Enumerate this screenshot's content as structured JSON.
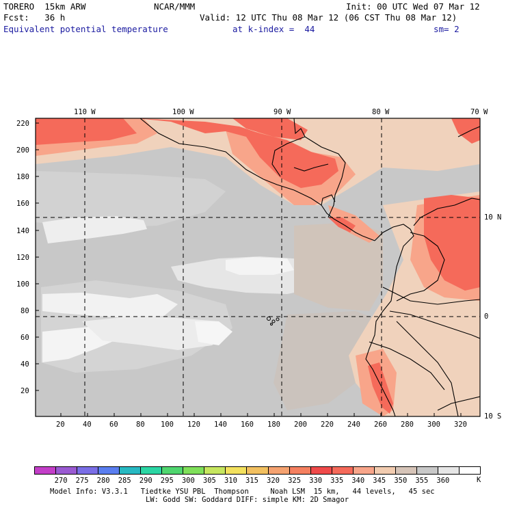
{
  "header": {
    "model": "TORERO  15km ARW",
    "org": "NCAR/MMM",
    "init": "Init: 00 UTC Wed 07 Mar 12",
    "fcst": "Fcst:   36 h",
    "valid": "Valid: 12 UTC Thu 08 Mar 12 (06 CST Thu 08 Mar 12)",
    "field": "Equivalent potential temperature",
    "level": "at k-index =  44",
    "smooth": "sm= 2"
  },
  "axes": {
    "top_lon_labels": [
      "110 W",
      "100 W",
      "90 W",
      "80 W",
      "70 W"
    ],
    "right_lat_labels": [
      "10 N",
      "0",
      "10 S"
    ],
    "y_ticks": [
      "220",
      "200",
      "180",
      "160",
      "140",
      "120",
      "100",
      "80",
      "60",
      "40",
      "20"
    ],
    "x_ticks": [
      "20",
      "40",
      "60",
      "80",
      "100",
      "120",
      "140",
      "160",
      "180",
      "200",
      "220",
      "240",
      "260",
      "280",
      "300",
      "320"
    ]
  },
  "colorbar": {
    "labels": [
      "270",
      "275",
      "280",
      "285",
      "290",
      "295",
      "300",
      "305",
      "310",
      "315",
      "320",
      "325",
      "330",
      "335",
      "340",
      "345",
      "350",
      "355",
      "360"
    ],
    "unit": "K",
    "colors": [
      "#c33ec8",
      "#9a5ad2",
      "#7a6ee6",
      "#5a7ef0",
      "#27b9c2",
      "#2bd6a4",
      "#4fd66f",
      "#7fe05a",
      "#c6e65f",
      "#f3e15e",
      "#f2c060",
      "#f5a270",
      "#f58060",
      "#f04a4a",
      "#f56a5a",
      "#f8a58a",
      "#f2ccb0",
      "#d6c4b8",
      "#c8c8c8",
      "#e6e6e6",
      "#ffffff"
    ]
  },
  "footer": {
    "line1": "Model Info: V3.3.1   Tiedtke YSU PBL  Thompson     Noah LSM  15 km,   44 levels,   45 sec",
    "line2": "LW: Godd SW: Goddard DIFF: simple KM: 2D Smagor"
  }
}
